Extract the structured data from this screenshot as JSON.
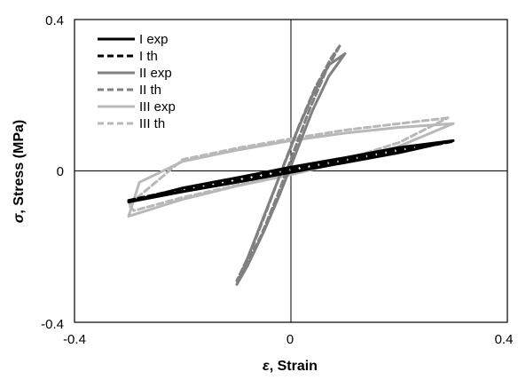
{
  "chart_data": {
    "type": "line",
    "xlabel_symbol": "ε",
    "xlabel_text": ", Strain",
    "ylabel_symbol": "σ",
    "ylabel_text": ", Stress (MPa)",
    "xlim": [
      -0.4,
      0.4
    ],
    "ylim": [
      -0.4,
      0.4
    ],
    "x_tick_labels": [
      "-0.4",
      "0",
      "0.4"
    ],
    "y_tick_labels": [
      "0.4",
      "0",
      "-0.4"
    ],
    "grid": false,
    "legend_position": "top-left",
    "series": [
      {
        "name": "I exp",
        "color": "#000000",
        "dash": "solid",
        "width": 3,
        "x": [
          -0.3,
          -0.2,
          -0.1,
          0.0,
          0.1,
          0.2,
          0.3,
          0.2,
          0.1,
          0.0,
          -0.1,
          -0.2,
          -0.3
        ],
        "y": [
          -0.082,
          -0.055,
          -0.03,
          -0.004,
          0.022,
          0.048,
          0.08,
          0.062,
          0.035,
          0.01,
          -0.018,
          -0.045,
          -0.082
        ]
      },
      {
        "name": "I th",
        "color": "#000000",
        "dash": "dashed",
        "width": 3,
        "x": [
          -0.3,
          -0.2,
          -0.1,
          0.0,
          0.1,
          0.2,
          0.3,
          0.2,
          0.1,
          0.0,
          -0.1,
          -0.2,
          -0.3
        ],
        "y": [
          -0.078,
          -0.052,
          -0.027,
          -0.001,
          0.025,
          0.052,
          0.078,
          0.057,
          0.031,
          0.006,
          -0.02,
          -0.047,
          -0.078
        ]
      },
      {
        "name": "II exp",
        "color": "#808080",
        "dash": "solid",
        "width": 3,
        "x": [
          0.1,
          0.07,
          0.04,
          0.01,
          -0.02,
          -0.05,
          -0.08,
          -0.1,
          -0.08,
          -0.05,
          -0.02,
          0.01,
          0.04,
          0.07,
          0.1
        ],
        "y": [
          0.31,
          0.25,
          0.16,
          0.05,
          -0.06,
          -0.16,
          -0.25,
          -0.3,
          -0.23,
          -0.12,
          -0.01,
          0.1,
          0.2,
          0.28,
          0.31
        ]
      },
      {
        "name": "II th",
        "color": "#808080",
        "dash": "dashed",
        "width": 3,
        "x": [
          0.09,
          0.065,
          0.035,
          0.005,
          -0.025,
          -0.055,
          -0.085,
          -0.1,
          -0.075,
          -0.045,
          -0.015,
          0.015,
          0.045,
          0.075,
          0.09
        ],
        "y": [
          0.33,
          0.265,
          0.165,
          0.05,
          -0.065,
          -0.17,
          -0.255,
          -0.29,
          -0.215,
          -0.105,
          0.01,
          0.12,
          0.22,
          0.3,
          0.33
        ]
      },
      {
        "name": "III exp",
        "color": "#b8b8b8",
        "dash": "solid",
        "width": 3,
        "x": [
          0.3,
          0.2,
          0.1,
          0.0,
          -0.1,
          -0.2,
          -0.28,
          -0.3,
          -0.2,
          -0.1,
          0.0,
          0.1,
          0.2,
          0.3
        ],
        "y": [
          0.125,
          0.115,
          0.1,
          0.08,
          0.055,
          0.025,
          -0.03,
          -0.12,
          -0.075,
          -0.04,
          -0.01,
          0.025,
          0.065,
          0.125
        ]
      },
      {
        "name": "III th",
        "color": "#b8b8b8",
        "dash": "dashed",
        "width": 3,
        "x": [
          0.29,
          0.2,
          0.1,
          0.0,
          -0.1,
          -0.2,
          -0.3,
          -0.29,
          -0.2,
          -0.1,
          0.0,
          0.1,
          0.2,
          0.29
        ],
        "y": [
          0.14,
          0.125,
          0.108,
          0.085,
          0.06,
          0.03,
          -0.09,
          -0.105,
          -0.07,
          -0.038,
          -0.005,
          0.03,
          0.075,
          0.14
        ]
      }
    ]
  }
}
